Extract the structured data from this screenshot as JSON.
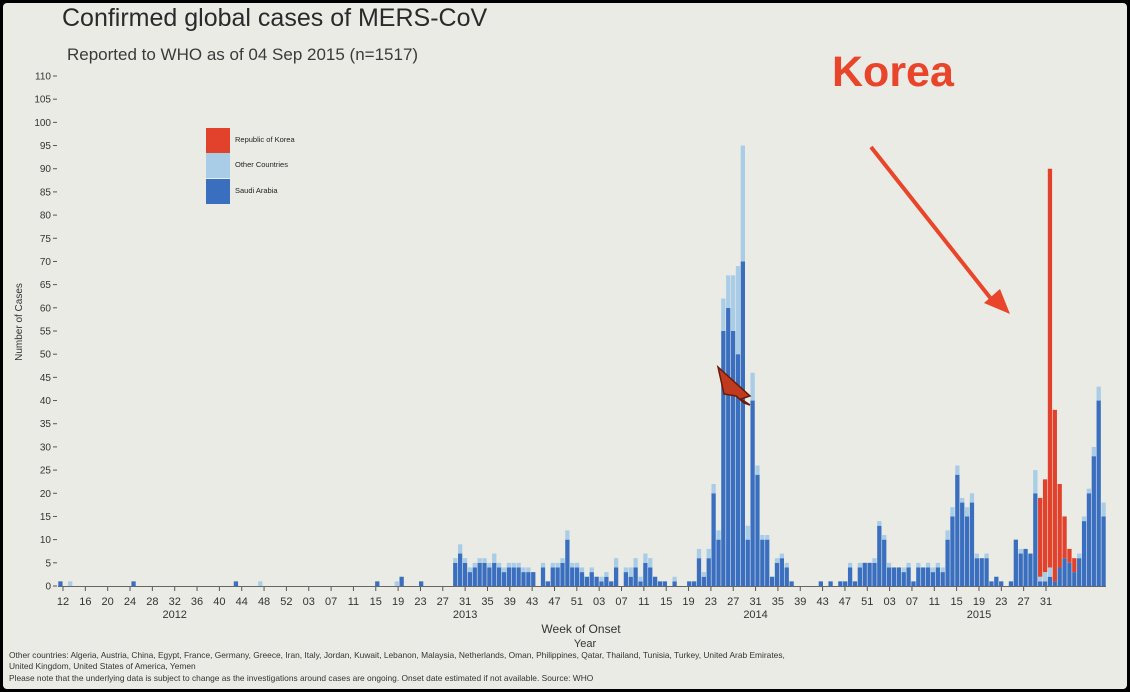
{
  "slide": {
    "title": "Confirmed global cases of MERS-CoV",
    "subtitle": "Reported to WHO as of 04 Sep 2015 (n=1517)",
    "annotation": "Korea",
    "footnote_countries": "Other countries: Algeria, Austria, China, Egypt, France, Germany, Greece, Iran, Italy, Jordan, Kuwait, Lebanon, Malaysia, Netherlands, Oman, Philippines, Qatar, Thailand, Tunisia, Turkey, United Arab Emirates,",
    "footnote_countries_2": "United Kingdom, United States of America, Yemen",
    "footnote_note": "Please note that the underlying data is subject to change as the investigations around cases are ongoing. Onset date estimated if not available. Source: WHO"
  },
  "chart_data": {
    "type": "bar",
    "stacked": true,
    "title": "Confirmed global cases of MERS-CoV",
    "subtitle": "Reported to WHO as of 04 Sep 2015 (n=1517)",
    "xlabel": "Week of Onset",
    "xlabel2": "Year",
    "ylabel": "Number of Cases",
    "ylim": [
      0,
      110
    ],
    "yticks": [
      0,
      5,
      10,
      15,
      20,
      25,
      30,
      35,
      40,
      45,
      50,
      55,
      60,
      65,
      70,
      75,
      80,
      85,
      90,
      95,
      100,
      105,
      110
    ],
    "xtick_labels": [
      "12",
      "16",
      "20",
      "24",
      "28",
      "32",
      "36",
      "40",
      "44",
      "48",
      "52",
      "03",
      "07",
      "11",
      "15",
      "19",
      "23",
      "27",
      "31",
      "35",
      "39",
      "43",
      "47",
      "51",
      "03",
      "07",
      "11",
      "15",
      "19",
      "23",
      "27",
      "31",
      "35",
      "39",
      "43",
      "47",
      "51",
      "03",
      "07",
      "11",
      "15",
      "19",
      "23",
      "27",
      "31"
    ],
    "year_labels": [
      {
        "label": "2012",
        "at_tick": 5
      },
      {
        "label": "2013",
        "at_tick": 18
      },
      {
        "label": "2014",
        "at_tick": 31
      },
      {
        "label": "2015",
        "at_tick": 41
      }
    ],
    "legend": {
      "placement": "top-left",
      "entries": [
        "Republic of Korea",
        "Other Countries",
        "Saudi Arabia"
      ]
    },
    "grid": false,
    "colors": {
      "Saudi Arabia": "#3a6fc0",
      "Other Countries": "#a9cde6",
      "Republic of Korea": "#e2422c"
    },
    "series": [
      {
        "name": "Saudi Arabia",
        "values": [
          1,
          0,
          0,
          0,
          0,
          0,
          0,
          0,
          0,
          0,
          0,
          0,
          0,
          0,
          0,
          1,
          0,
          0,
          0,
          0,
          0,
          0,
          0,
          0,
          0,
          0,
          0,
          0,
          0,
          0,
          0,
          0,
          0,
          0,
          0,
          0,
          1,
          0,
          0,
          0,
          0,
          0,
          0,
          0,
          0,
          0,
          0,
          0,
          0,
          0,
          0,
          0,
          0,
          0,
          0,
          0,
          0,
          0,
          0,
          0,
          0,
          0,
          0,
          0,
          0,
          1,
          0,
          0,
          0,
          0,
          2,
          0,
          0,
          0,
          1,
          0,
          0,
          0,
          0,
          0,
          0,
          5,
          7,
          5,
          3,
          4,
          5,
          5,
          4,
          5,
          4,
          3,
          4,
          4,
          4,
          3,
          3,
          3,
          0,
          4,
          1,
          4,
          4,
          5,
          10,
          4,
          4,
          3,
          2,
          3,
          2,
          1,
          2,
          1,
          4,
          0,
          3,
          2,
          4,
          1,
          5,
          4,
          2,
          1,
          1,
          0,
          1,
          0,
          0,
          1,
          1,
          6,
          2,
          6,
          20,
          10,
          55,
          60,
          55,
          50,
          70,
          10,
          40,
          24,
          10,
          10,
          2,
          5,
          6,
          4,
          1,
          0,
          0,
          0,
          0,
          0,
          1,
          0,
          1,
          0,
          1,
          1,
          4,
          1,
          4,
          5,
          5,
          5,
          13,
          10,
          4,
          4,
          4,
          3,
          4,
          1,
          4,
          4,
          4,
          3,
          4,
          3,
          10,
          15,
          24,
          18,
          15,
          18,
          6,
          6,
          6,
          1,
          2,
          1,
          0,
          1,
          10,
          7,
          8,
          7,
          20,
          1,
          1,
          2,
          1,
          4,
          6,
          5,
          3,
          6,
          14,
          20,
          28,
          40,
          15
        ]
      },
      {
        "name": "Other Countries",
        "values": [
          0,
          0,
          1,
          0,
          0,
          0,
          0,
          0,
          0,
          0,
          0,
          0,
          0,
          0,
          0,
          0,
          0,
          0,
          0,
          0,
          0,
          0,
          0,
          0,
          0,
          0,
          0,
          0,
          0,
          0,
          0,
          0,
          0,
          0,
          0,
          0,
          0,
          0,
          0,
          0,
          0,
          1,
          0,
          0,
          0,
          0,
          0,
          0,
          0,
          0,
          0,
          0,
          0,
          0,
          0,
          0,
          0,
          0,
          0,
          0,
          0,
          0,
          0,
          0,
          0,
          0,
          0,
          0,
          0,
          1,
          0,
          0,
          0,
          0,
          0,
          0,
          0,
          0,
          0,
          0,
          0,
          1,
          2,
          1,
          1,
          1,
          1,
          1,
          1,
          2,
          1,
          1,
          1,
          1,
          1,
          1,
          1,
          0,
          0,
          1,
          0,
          1,
          1,
          1,
          2,
          1,
          1,
          1,
          0,
          1,
          0,
          1,
          1,
          0,
          2,
          0,
          1,
          2,
          2,
          1,
          2,
          2,
          0,
          0,
          0,
          0,
          1,
          0,
          0,
          0,
          0,
          2,
          1,
          2,
          2,
          2,
          7,
          7,
          12,
          19,
          25,
          3,
          6,
          2,
          1,
          1,
          0,
          1,
          1,
          1,
          0,
          0,
          0,
          0,
          0,
          0,
          0,
          0,
          0,
          0,
          0,
          0,
          1,
          0,
          1,
          0,
          0,
          1,
          1,
          1,
          1,
          0,
          0,
          1,
          1,
          0,
          1,
          0,
          1,
          1,
          1,
          1,
          2,
          2,
          2,
          1,
          2,
          2,
          1,
          0,
          1,
          0,
          0,
          0,
          0,
          0,
          0,
          1,
          0,
          0,
          5,
          1,
          2,
          2,
          0,
          0,
          0,
          0,
          0,
          1,
          1,
          1,
          2,
          3,
          3
        ]
      },
      {
        "name": "Republic of Korea",
        "values": [
          0,
          0,
          0,
          0,
          0,
          0,
          0,
          0,
          0,
          0,
          0,
          0,
          0,
          0,
          0,
          0,
          0,
          0,
          0,
          0,
          0,
          0,
          0,
          0,
          0,
          0,
          0,
          0,
          0,
          0,
          0,
          0,
          0,
          0,
          0,
          0,
          0,
          0,
          0,
          0,
          0,
          0,
          0,
          0,
          0,
          0,
          0,
          0,
          0,
          0,
          0,
          0,
          0,
          0,
          0,
          0,
          0,
          0,
          0,
          0,
          0,
          0,
          0,
          0,
          0,
          0,
          0,
          0,
          0,
          0,
          0,
          0,
          0,
          0,
          0,
          0,
          0,
          0,
          0,
          0,
          0,
          0,
          0,
          0,
          0,
          0,
          0,
          0,
          0,
          0,
          0,
          0,
          0,
          0,
          0,
          0,
          0,
          0,
          0,
          0,
          0,
          0,
          0,
          0,
          0,
          0,
          0,
          0,
          0,
          0,
          0,
          0,
          0,
          0,
          0,
          0,
          0,
          0,
          0,
          0,
          0,
          0,
          0,
          0,
          0,
          0,
          0,
          0,
          0,
          0,
          0,
          0,
          0,
          0,
          0,
          0,
          0,
          0,
          0,
          0,
          0,
          0,
          0,
          0,
          0,
          0,
          0,
          0,
          0,
          0,
          0,
          0,
          0,
          0,
          0,
          0,
          0,
          0,
          0,
          0,
          0,
          0,
          0,
          0,
          0,
          0,
          0,
          0,
          0,
          0,
          0,
          0,
          0,
          0,
          0,
          0,
          0,
          0,
          0,
          0,
          0,
          0,
          0,
          0,
          0,
          0,
          0,
          0,
          0,
          0,
          0,
          0,
          0,
          0,
          0,
          0,
          0,
          0,
          0,
          0,
          0,
          17,
          20,
          86,
          37,
          18,
          9,
          3,
          3,
          0,
          0,
          0,
          0,
          0,
          0,
          0
        ]
      }
    ]
  }
}
